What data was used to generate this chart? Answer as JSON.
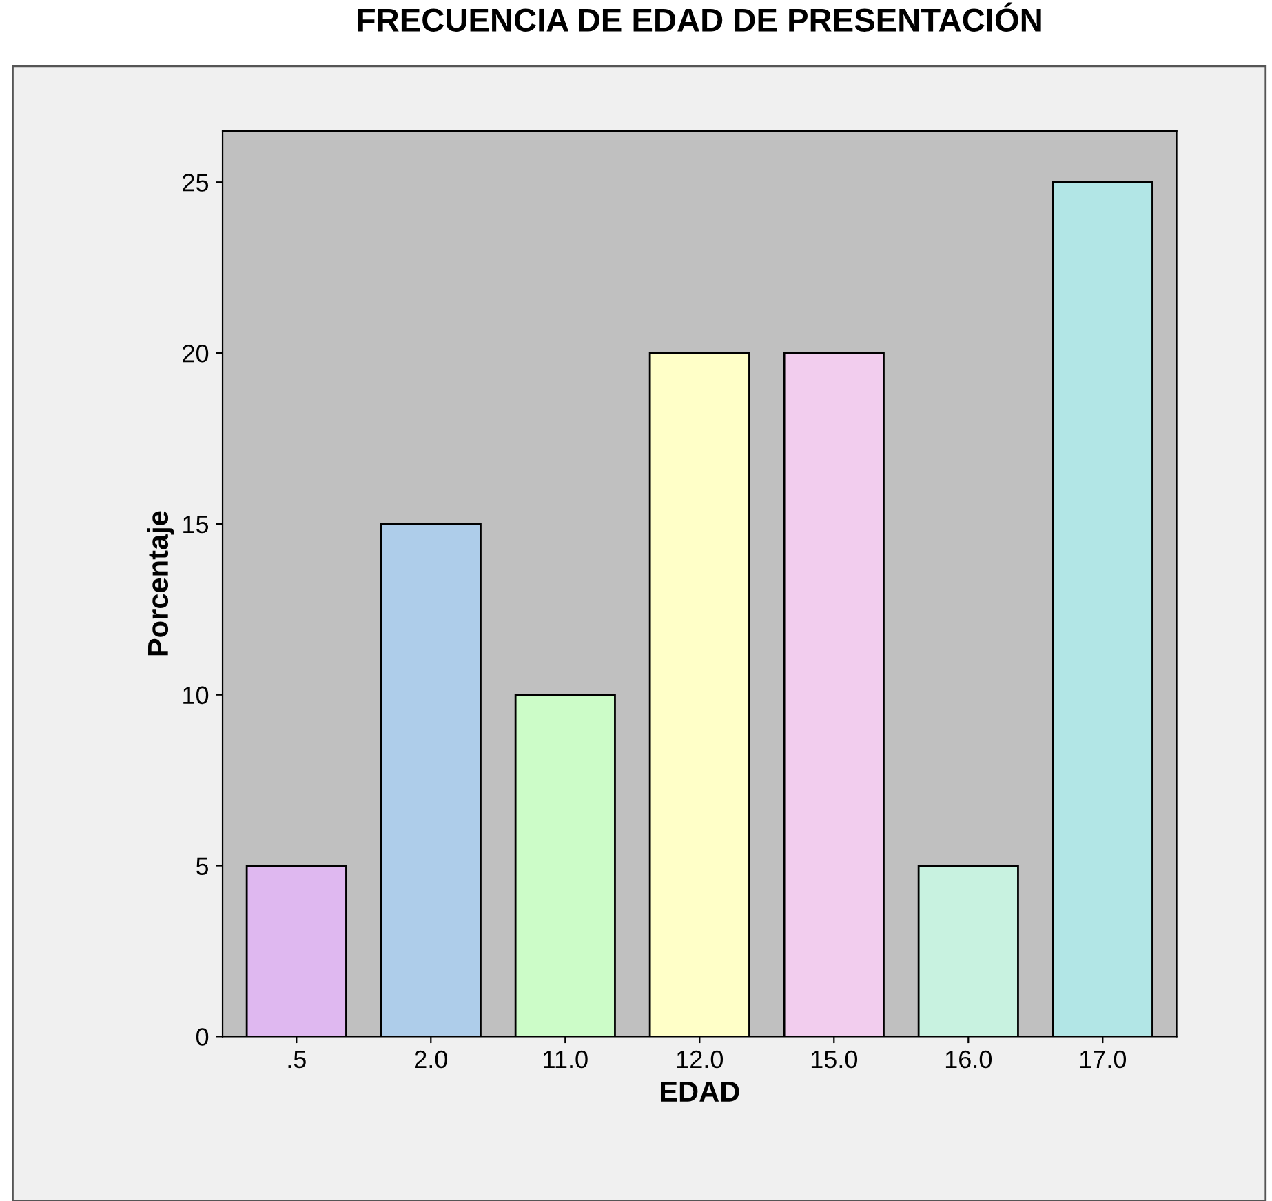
{
  "chart_data": {
    "type": "bar",
    "title": "FRECUENCIA DE EDAD DE PRESENTACIÓN",
    "xlabel": "EDAD",
    "ylabel": "Porcentaje",
    "categories": [
      ".5",
      "2.0",
      "11.0",
      "12.0",
      "15.0",
      "16.0",
      "17.0"
    ],
    "values": [
      5,
      15,
      10,
      20,
      20,
      5,
      25
    ],
    "colors": [
      "#dfb8f0",
      "#aecdea",
      "#ccfcc8",
      "#ffffc8",
      "#f2cdee",
      "#c8f2e0",
      "#b2e6e6"
    ],
    "ylim": [
      0,
      26.5
    ],
    "yticks": [
      0,
      5,
      10,
      15,
      20,
      25
    ],
    "grid": false
  }
}
